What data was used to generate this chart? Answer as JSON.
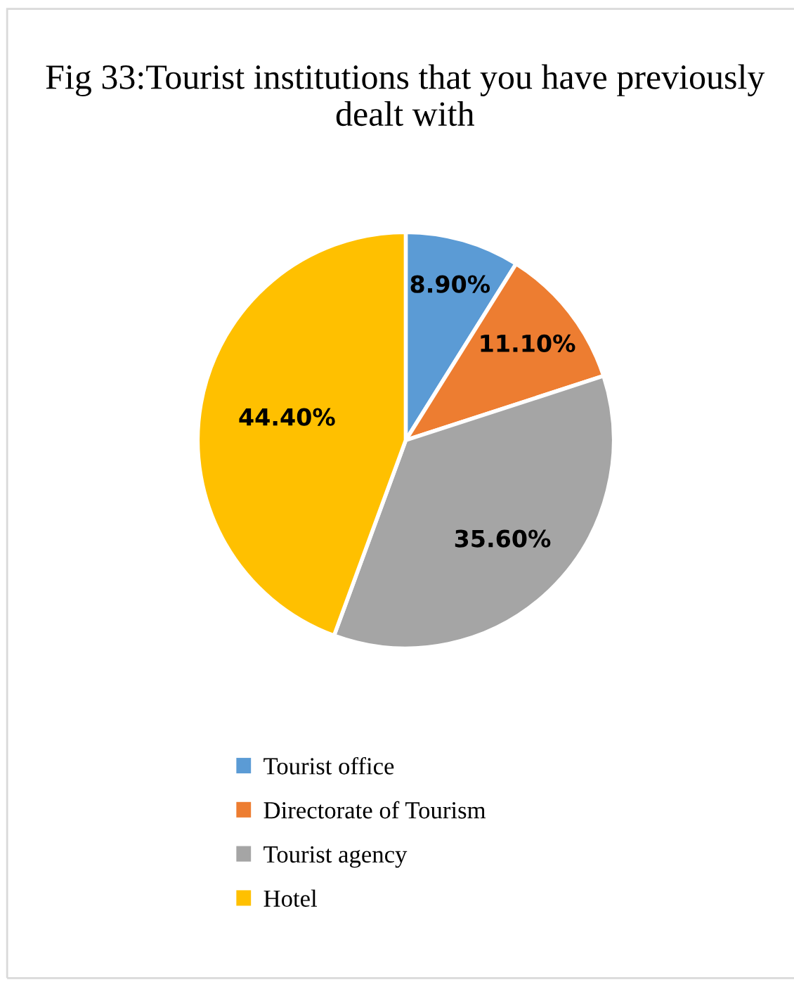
{
  "chart_data": {
    "type": "pie",
    "title": "Fig 33:Tourist institutions that you have previously dealt with",
    "categories": [
      "Tourist office",
      "Directorate of Tourism",
      "Tourist agency",
      "Hotel"
    ],
    "values": [
      8.9,
      11.1,
      35.6,
      44.4
    ],
    "colors": [
      "#5b9bd5",
      "#ed7d31",
      "#a5a5a5",
      "#ffc000"
    ],
    "value_labels": [
      "8.90%",
      "11.10%",
      "35.60%",
      "44.40%"
    ],
    "legend": "bottom"
  }
}
